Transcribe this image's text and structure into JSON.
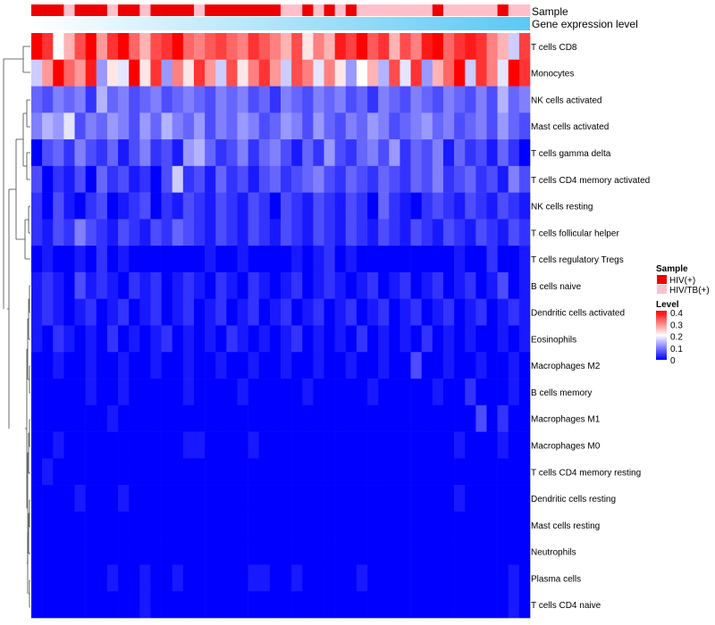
{
  "chart_data": {
    "type": "heatmap",
    "title": "",
    "annotations": {
      "sample_label": "Sample",
      "gene_label": "Gene expression level",
      "sample_groups": [
        "HIV(+)",
        "HIV/TB(+)"
      ],
      "sample_colors": [
        "#ee0000",
        "#ffc0cb"
      ],
      "sample_assignment": [
        0,
        0,
        0,
        1,
        0,
        0,
        0,
        1,
        0,
        0,
        1,
        0,
        0,
        0,
        0,
        1,
        0,
        0,
        0,
        0,
        0,
        0,
        0,
        1,
        1,
        0,
        1,
        0,
        1,
        0,
        1,
        1,
        1,
        1,
        1,
        1,
        1,
        0,
        1,
        1,
        1,
        1,
        1,
        0,
        1,
        1
      ]
    },
    "rows": [
      "T cells CD8",
      "Monocytes",
      "NK cells activated",
      "Mast cells activated",
      "T cells gamma delta",
      "T cells CD4 memory activated",
      "NK cells resting",
      "T cells follicular helper",
      "T cells regulatory  Tregs",
      "B cells naive",
      "Dendritic cells activated",
      "Eosinophils",
      "Macrophages M2",
      "B cells memory",
      "Macrophages M1",
      "Macrophages M0",
      "T cells CD4 memory resting",
      "Dendritic cells resting",
      "Mast cells resting",
      "Neutrophils",
      "Plasma cells",
      "T cells CD4 naive"
    ],
    "n_columns": 46,
    "values": [
      [
        0.4,
        0.36,
        0.2,
        0.26,
        0.34,
        0.4,
        0.28,
        0.36,
        0.4,
        0.32,
        0.26,
        0.34,
        0.36,
        0.4,
        0.32,
        0.3,
        0.33,
        0.35,
        0.32,
        0.3,
        0.36,
        0.33,
        0.3,
        0.26,
        0.34,
        0.22,
        0.3,
        0.26,
        0.38,
        0.35,
        0.4,
        0.33,
        0.36,
        0.26,
        0.34,
        0.3,
        0.38,
        0.4,
        0.32,
        0.36,
        0.38,
        0.36,
        0.3,
        0.26,
        0.16,
        0.35
      ],
      [
        0.16,
        0.28,
        0.4,
        0.32,
        0.28,
        0.38,
        0.12,
        0.22,
        0.18,
        0.4,
        0.22,
        0.36,
        0.12,
        0.3,
        0.22,
        0.36,
        0.28,
        0.16,
        0.34,
        0.22,
        0.3,
        0.36,
        0.28,
        0.16,
        0.34,
        0.3,
        0.18,
        0.3,
        0.22,
        0.12,
        0.2,
        0.26,
        0.14,
        0.34,
        0.18,
        0.36,
        0.12,
        0.26,
        0.32,
        0.4,
        0.16,
        0.36,
        0.3,
        0.18,
        0.4,
        0.36
      ],
      [
        0.08,
        0.06,
        0.1,
        0.08,
        0.1,
        0.04,
        0.14,
        0.08,
        0.1,
        0.06,
        0.08,
        0.1,
        0.06,
        0.08,
        0.1,
        0.08,
        0.06,
        0.1,
        0.08,
        0.1,
        0.06,
        0.08,
        0.04,
        0.1,
        0.08,
        0.06,
        0.1,
        0.08,
        0.1,
        0.06,
        0.08,
        0.04,
        0.1,
        0.08,
        0.06,
        0.1,
        0.08,
        0.06,
        0.1,
        0.08,
        0.06,
        0.1,
        0.06,
        0.14,
        0.08,
        0.1
      ],
      [
        0.1,
        0.14,
        0.12,
        0.18,
        0.06,
        0.1,
        0.08,
        0.12,
        0.1,
        0.06,
        0.12,
        0.08,
        0.14,
        0.1,
        0.08,
        0.12,
        0.06,
        0.1,
        0.08,
        0.12,
        0.1,
        0.06,
        0.08,
        0.12,
        0.1,
        0.06,
        0.12,
        0.08,
        0.06,
        0.1,
        0.08,
        0.12,
        0.1,
        0.06,
        0.08,
        0.1,
        0.12,
        0.08,
        0.1,
        0.06,
        0.08,
        0.1,
        0.06,
        0.12,
        0.08,
        0.06
      ],
      [
        0.0,
        0.06,
        0.08,
        0.04,
        0.1,
        0.06,
        0.04,
        0.08,
        0.02,
        0.06,
        0.1,
        0.04,
        0.06,
        0.02,
        0.12,
        0.14,
        0.08,
        0.04,
        0.06,
        0.1,
        0.04,
        0.08,
        0.1,
        0.06,
        0.02,
        0.08,
        0.04,
        0.12,
        0.06,
        0.04,
        0.08,
        0.1,
        0.06,
        0.12,
        0.04,
        0.08,
        0.06,
        0.1,
        0.02,
        0.08,
        0.04,
        0.06,
        0.02,
        0.08,
        0.04,
        0.0
      ],
      [
        0.06,
        0.0,
        0.04,
        0.02,
        0.06,
        0.0,
        0.08,
        0.04,
        0.06,
        0.02,
        0.04,
        0.0,
        0.06,
        0.16,
        0.04,
        0.06,
        0.02,
        0.08,
        0.04,
        0.06,
        0.02,
        0.06,
        0.08,
        0.04,
        0.06,
        0.08,
        0.1,
        0.06,
        0.04,
        0.08,
        0.06,
        0.04,
        0.08,
        0.06,
        0.04,
        0.08,
        0.06,
        0.1,
        0.04,
        0.06,
        0.08,
        0.04,
        0.06,
        0.02,
        0.1,
        0.06
      ],
      [
        0.04,
        0.0,
        0.06,
        0.02,
        0.0,
        0.04,
        0.06,
        0.0,
        0.02,
        0.04,
        0.06,
        0.0,
        0.04,
        0.02,
        0.06,
        0.04,
        0.02,
        0.06,
        0.04,
        0.02,
        0.06,
        0.04,
        0.0,
        0.06,
        0.04,
        0.02,
        0.06,
        0.04,
        0.02,
        0.06,
        0.04,
        0.0,
        0.08,
        0.04,
        0.02,
        0.0,
        0.04,
        0.06,
        0.04,
        0.02,
        0.06,
        0.04,
        0.02,
        0.06,
        0.04,
        0.02
      ],
      [
        0.04,
        0.02,
        0.06,
        0.04,
        0.1,
        0.06,
        0.04,
        0.02,
        0.06,
        0.04,
        0.02,
        0.06,
        0.04,
        0.08,
        0.06,
        0.04,
        0.02,
        0.06,
        0.04,
        0.02,
        0.06,
        0.04,
        0.02,
        0.06,
        0.04,
        0.02,
        0.06,
        0.04,
        0.02,
        0.06,
        0.04,
        0.02,
        0.06,
        0.04,
        0.02,
        0.06,
        0.04,
        0.02,
        0.06,
        0.04,
        0.02,
        0.06,
        0.04,
        0.02,
        0.06,
        0.04
      ],
      [
        0.0,
        0.02,
        0.0,
        0.0,
        0.02,
        0.0,
        0.04,
        0.0,
        0.02,
        0.0,
        0.0,
        0.0,
        0.0,
        0.0,
        0.0,
        0.0,
        0.02,
        0.0,
        0.0,
        0.02,
        0.0,
        0.0,
        0.0,
        0.0,
        0.02,
        0.0,
        0.02,
        0.04,
        0.0,
        0.02,
        0.0,
        0.0,
        0.0,
        0.0,
        0.0,
        0.0,
        0.0,
        0.0,
        0.0,
        0.02,
        0.0,
        0.0,
        0.04,
        0.0,
        0.0,
        0.02
      ],
      [
        0.02,
        0.04,
        0.02,
        0.0,
        0.06,
        0.02,
        0.04,
        0.02,
        0.0,
        0.04,
        0.02,
        0.04,
        0.0,
        0.02,
        0.04,
        0.02,
        0.0,
        0.04,
        0.02,
        0.0,
        0.04,
        0.02,
        0.0,
        0.02,
        0.04,
        0.0,
        0.02,
        0.04,
        0.02,
        0.0,
        0.02,
        0.04,
        0.0,
        0.02,
        0.04,
        0.0,
        0.02,
        0.04,
        0.0,
        0.02,
        0.04,
        0.0,
        0.02,
        0.06,
        0.0,
        0.02
      ],
      [
        0.02,
        0.04,
        0.02,
        0.0,
        0.02,
        0.04,
        0.0,
        0.02,
        0.04,
        0.0,
        0.02,
        0.04,
        0.0,
        0.02,
        0.04,
        0.0,
        0.02,
        0.04,
        0.0,
        0.02,
        0.04,
        0.0,
        0.02,
        0.04,
        0.0,
        0.02,
        0.04,
        0.0,
        0.02,
        0.04,
        0.0,
        0.02,
        0.04,
        0.0,
        0.02,
        0.04,
        0.0,
        0.02,
        0.04,
        0.0,
        0.02,
        0.04,
        0.0,
        0.02,
        0.04,
        0.02
      ],
      [
        0.02,
        0.0,
        0.04,
        0.02,
        0.0,
        0.02,
        0.0,
        0.04,
        0.0,
        0.02,
        0.0,
        0.02,
        0.04,
        0.0,
        0.02,
        0.0,
        0.02,
        0.0,
        0.04,
        0.02,
        0.0,
        0.02,
        0.0,
        0.02,
        0.04,
        0.0,
        0.02,
        0.0,
        0.02,
        0.0,
        0.04,
        0.0,
        0.02,
        0.0,
        0.02,
        0.0,
        0.04,
        0.0,
        0.02,
        0.0,
        0.02,
        0.0,
        0.0,
        0.02,
        0.0,
        0.02
      ],
      [
        0.0,
        0.0,
        0.02,
        0.0,
        0.0,
        0.02,
        0.0,
        0.0,
        0.02,
        0.0,
        0.0,
        0.02,
        0.0,
        0.0,
        0.02,
        0.0,
        0.0,
        0.02,
        0.0,
        0.0,
        0.02,
        0.0,
        0.0,
        0.02,
        0.0,
        0.0,
        0.02,
        0.0,
        0.0,
        0.02,
        0.0,
        0.0,
        0.02,
        0.0,
        0.0,
        0.06,
        0.0,
        0.0,
        0.02,
        0.0,
        0.0,
        0.02,
        0.0,
        0.0,
        0.02,
        0.0
      ],
      [
        0.0,
        0.0,
        0.0,
        0.0,
        0.0,
        0.02,
        0.0,
        0.0,
        0.02,
        0.0,
        0.0,
        0.0,
        0.0,
        0.0,
        0.02,
        0.0,
        0.0,
        0.0,
        0.0,
        0.02,
        0.0,
        0.0,
        0.0,
        0.0,
        0.0,
        0.02,
        0.0,
        0.0,
        0.0,
        0.0,
        0.0,
        0.02,
        0.0,
        0.0,
        0.0,
        0.0,
        0.0,
        0.02,
        0.0,
        0.0,
        0.04,
        0.0,
        0.0,
        0.0,
        0.02,
        0.0
      ],
      [
        0.0,
        0.0,
        0.0,
        0.0,
        0.0,
        0.0,
        0.0,
        0.02,
        0.0,
        0.0,
        0.0,
        0.0,
        0.0,
        0.0,
        0.0,
        0.0,
        0.0,
        0.0,
        0.0,
        0.0,
        0.0,
        0.0,
        0.0,
        0.0,
        0.0,
        0.0,
        0.0,
        0.0,
        0.0,
        0.0,
        0.0,
        0.0,
        0.0,
        0.0,
        0.0,
        0.0,
        0.0,
        0.0,
        0.0,
        0.0,
        0.0,
        0.06,
        0.0,
        0.04,
        0.0,
        0.0
      ],
      [
        0.0,
        0.0,
        0.02,
        0.0,
        0.0,
        0.0,
        0.0,
        0.0,
        0.0,
        0.0,
        0.0,
        0.0,
        0.0,
        0.0,
        0.02,
        0.02,
        0.0,
        0.0,
        0.0,
        0.0,
        0.02,
        0.0,
        0.0,
        0.0,
        0.0,
        0.0,
        0.0,
        0.0,
        0.0,
        0.0,
        0.0,
        0.0,
        0.0,
        0.0,
        0.0,
        0.0,
        0.0,
        0.0,
        0.0,
        0.02,
        0.0,
        0.0,
        0.0,
        0.02,
        0.0,
        0.0
      ],
      [
        0.0,
        0.02,
        0.0,
        0.0,
        0.0,
        0.0,
        0.0,
        0.0,
        0.0,
        0.0,
        0.0,
        0.0,
        0.0,
        0.0,
        0.0,
        0.0,
        0.0,
        0.0,
        0.0,
        0.0,
        0.0,
        0.0,
        0.0,
        0.0,
        0.0,
        0.0,
        0.0,
        0.0,
        0.0,
        0.0,
        0.0,
        0.0,
        0.0,
        0.0,
        0.0,
        0.0,
        0.0,
        0.0,
        0.0,
        0.0,
        0.0,
        0.0,
        0.0,
        0.0,
        0.0,
        0.0
      ],
      [
        0.0,
        0.0,
        0.0,
        0.0,
        0.02,
        0.0,
        0.0,
        0.0,
        0.02,
        0.0,
        0.0,
        0.0,
        0.0,
        0.0,
        0.0,
        0.0,
        0.0,
        0.0,
        0.0,
        0.0,
        0.0,
        0.0,
        0.0,
        0.0,
        0.0,
        0.0,
        0.0,
        0.0,
        0.0,
        0.0,
        0.0,
        0.0,
        0.0,
        0.0,
        0.0,
        0.0,
        0.0,
        0.0,
        0.0,
        0.02,
        0.0,
        0.0,
        0.0,
        0.0,
        0.0,
        0.0
      ],
      [
        0.0,
        0.0,
        0.0,
        0.0,
        0.0,
        0.0,
        0.0,
        0.0,
        0.0,
        0.0,
        0.0,
        0.0,
        0.0,
        0.0,
        0.0,
        0.0,
        0.0,
        0.0,
        0.0,
        0.0,
        0.0,
        0.0,
        0.0,
        0.0,
        0.0,
        0.0,
        0.0,
        0.0,
        0.0,
        0.0,
        0.0,
        0.0,
        0.0,
        0.0,
        0.0,
        0.0,
        0.0,
        0.0,
        0.0,
        0.0,
        0.0,
        0.0,
        0.0,
        0.0,
        0.0,
        0.0
      ],
      [
        0.0,
        0.0,
        0.0,
        0.0,
        0.0,
        0.0,
        0.0,
        0.0,
        0.0,
        0.0,
        0.0,
        0.0,
        0.0,
        0.0,
        0.0,
        0.0,
        0.0,
        0.0,
        0.0,
        0.0,
        0.0,
        0.0,
        0.0,
        0.0,
        0.0,
        0.0,
        0.0,
        0.0,
        0.0,
        0.0,
        0.0,
        0.0,
        0.0,
        0.0,
        0.0,
        0.0,
        0.0,
        0.0,
        0.0,
        0.0,
        0.0,
        0.0,
        0.0,
        0.0,
        0.0,
        0.0
      ],
      [
        0.0,
        0.0,
        0.0,
        0.0,
        0.0,
        0.0,
        0.0,
        0.02,
        0.0,
        0.0,
        0.02,
        0.0,
        0.0,
        0.02,
        0.0,
        0.0,
        0.0,
        0.0,
        0.0,
        0.0,
        0.02,
        0.02,
        0.0,
        0.0,
        0.02,
        0.0,
        0.0,
        0.0,
        0.0,
        0.0,
        0.02,
        0.0,
        0.0,
        0.0,
        0.0,
        0.0,
        0.0,
        0.0,
        0.0,
        0.0,
        0.0,
        0.0,
        0.0,
        0.0,
        0.02,
        0.0
      ],
      [
        0.0,
        0.0,
        0.0,
        0.0,
        0.0,
        0.0,
        0.0,
        0.0,
        0.0,
        0.0,
        0.02,
        0.0,
        0.0,
        0.0,
        0.0,
        0.0,
        0.0,
        0.0,
        0.0,
        0.0,
        0.0,
        0.0,
        0.0,
        0.0,
        0.0,
        0.0,
        0.0,
        0.0,
        0.0,
        0.0,
        0.0,
        0.0,
        0.0,
        0.0,
        0.0,
        0.0,
        0.0,
        0.0,
        0.0,
        0.0,
        0.0,
        0.0,
        0.0,
        0.0,
        0.02,
        0.0
      ]
    ],
    "color_scale": {
      "min": 0,
      "max": 0.4,
      "stops": [
        {
          "value": 0.0,
          "color": "#0000ff"
        },
        {
          "value": 0.2,
          "color": "#ffffff"
        },
        {
          "value": 0.4,
          "color": "#ff0000"
        }
      ]
    },
    "gene_expression_gradient": [
      "#ffffff",
      "#5bc8f5"
    ],
    "legend": {
      "sample_title": "Sample",
      "level_title": "Level",
      "level_ticks": [
        "0.4",
        "0.3",
        "0.2",
        "0.1",
        "0"
      ],
      "placement": "right"
    },
    "dendrogram": "row"
  }
}
